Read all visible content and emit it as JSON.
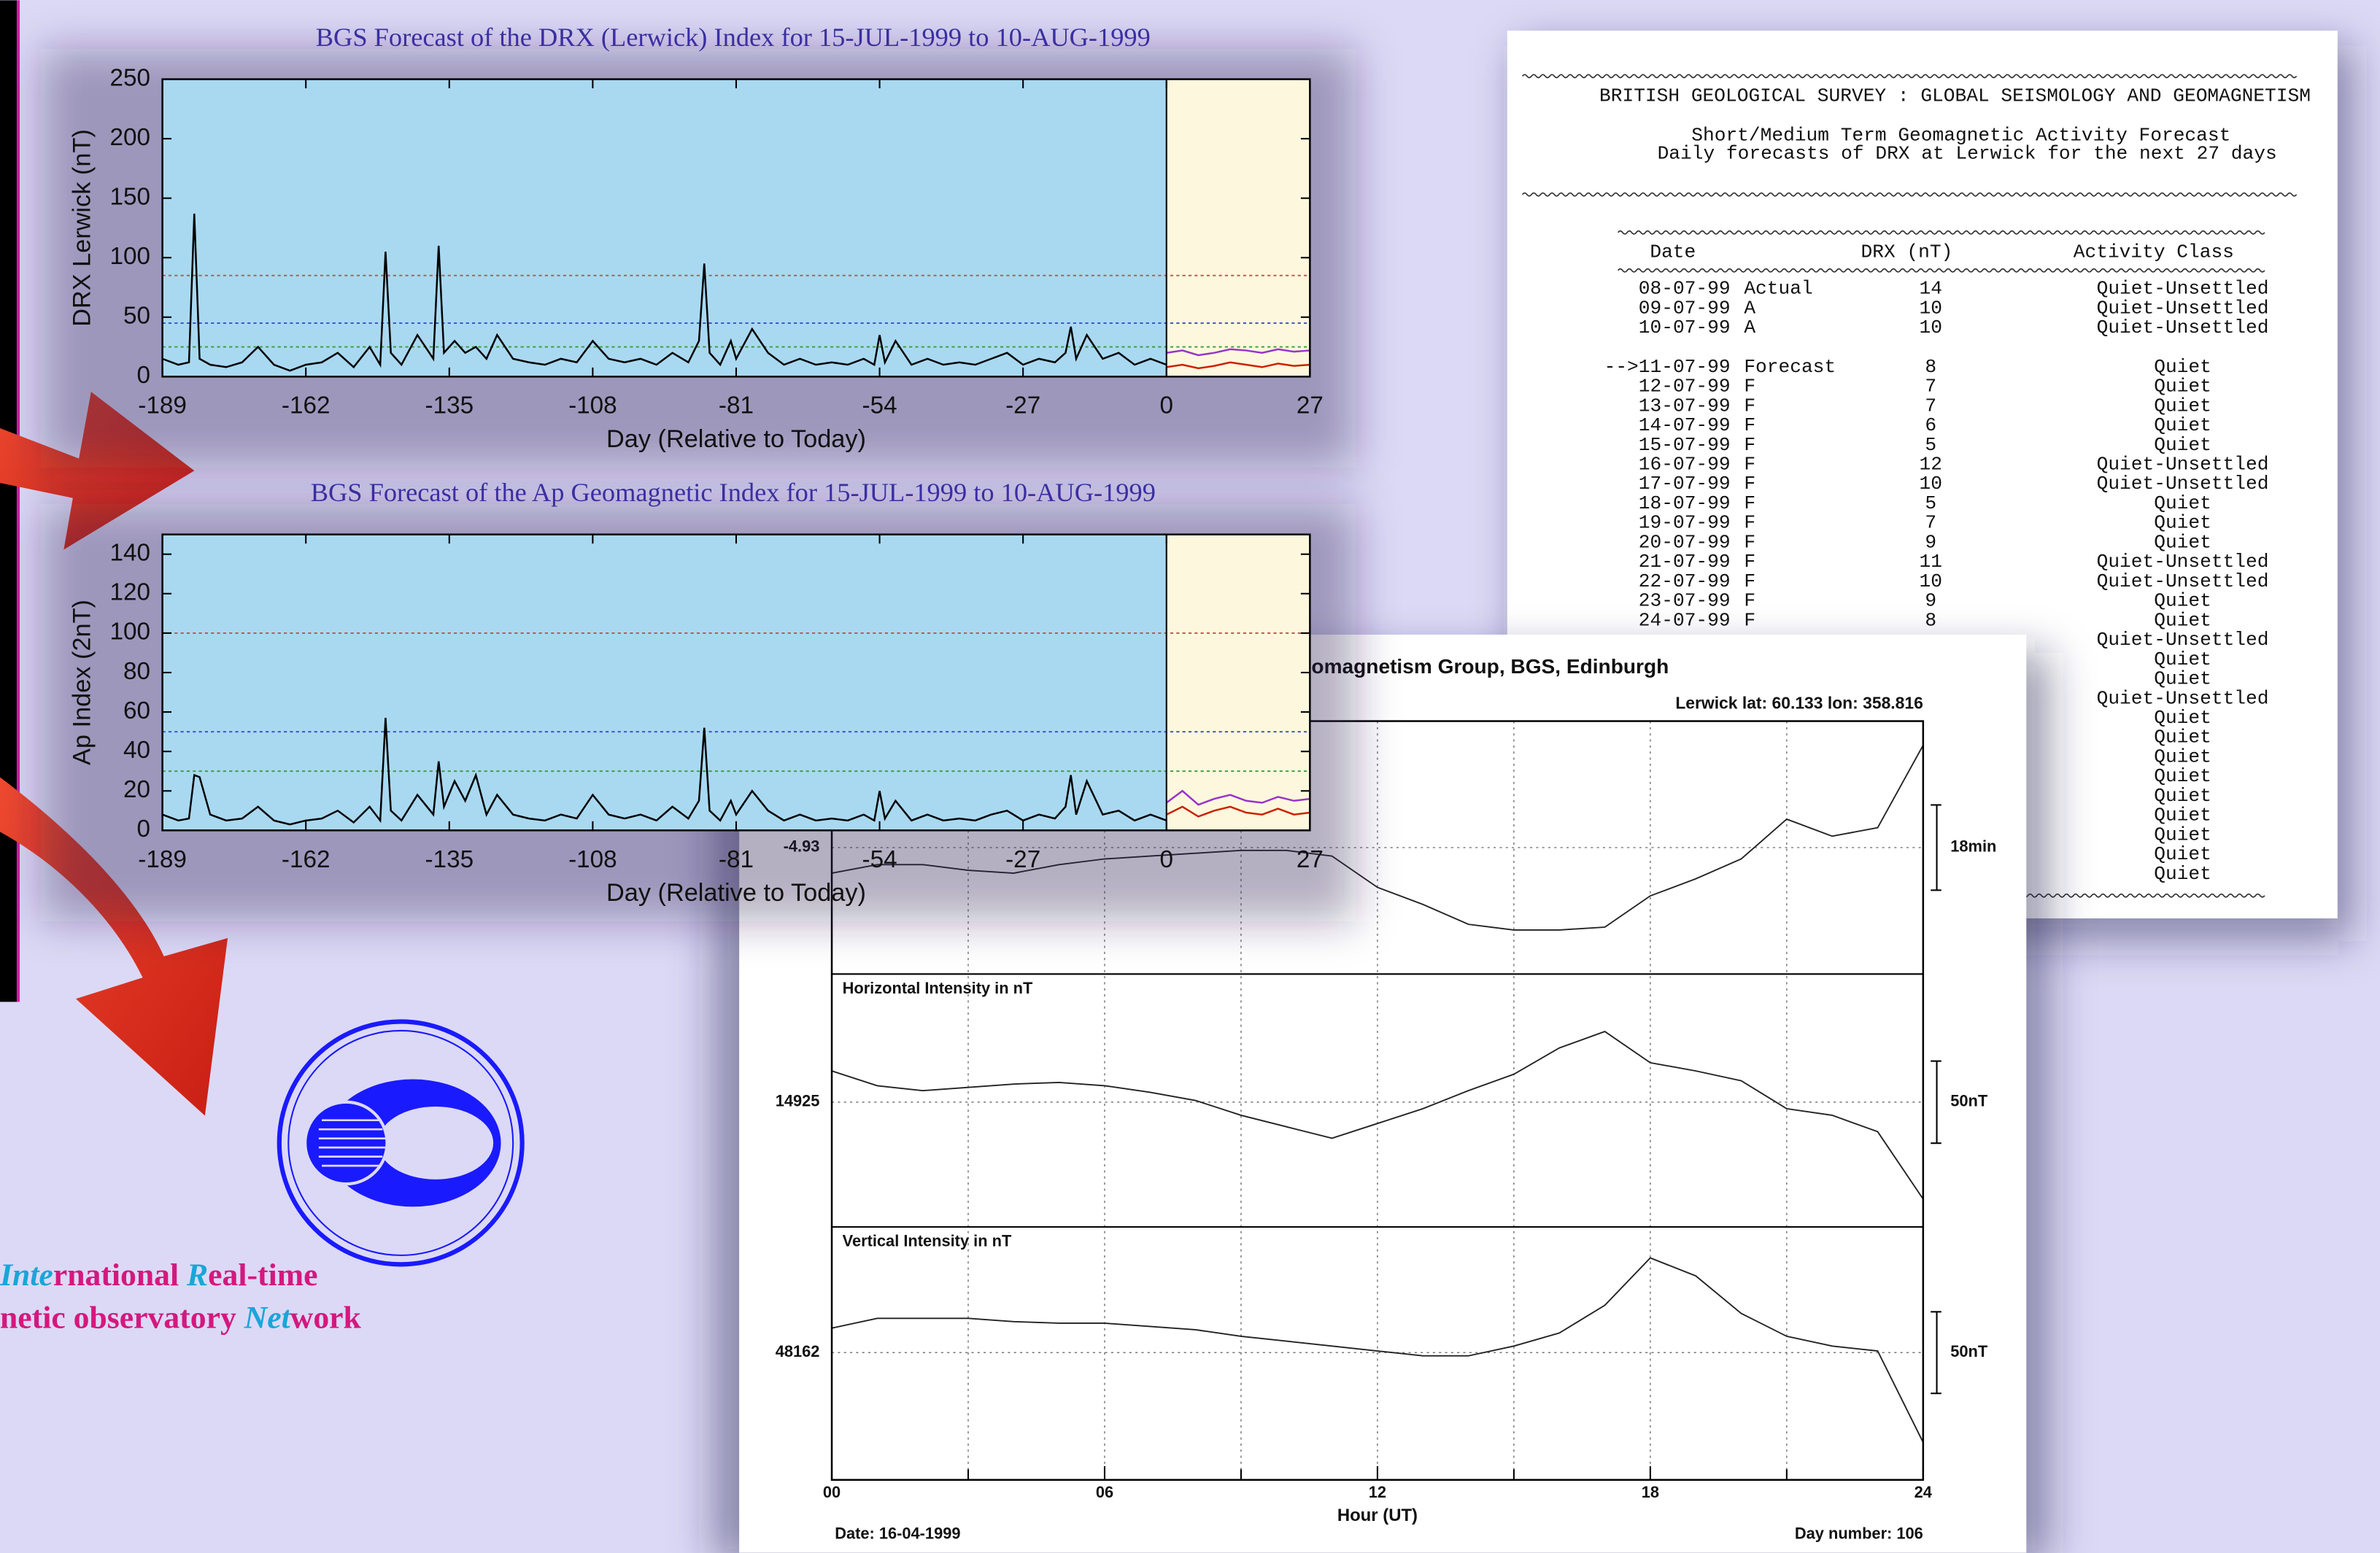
{
  "chart_data": [
    {
      "type": "line",
      "title": "BGS Forecast of the DRX (Lerwick) Index for  15-JUL-1999 to 10-AUG-1999",
      "x_label": "Day (Relative to Today)",
      "y_label": "DRX Lerwick (nT)",
      "xlim": [
        -189,
        27
      ],
      "xticks": [
        -189,
        -162,
        -135,
        -108,
        -81,
        -54,
        -27,
        0,
        27
      ],
      "ylim": [
        0,
        250
      ],
      "yticks": [
        0,
        50,
        100,
        150,
        200,
        250
      ],
      "forecast_region": [
        0,
        27
      ],
      "reference_lines": [
        {
          "value": 85,
          "color": "#c0504d"
        },
        {
          "value": 45,
          "color": "#3b4cc0"
        },
        {
          "value": 25,
          "color": "#3a9a3a"
        }
      ],
      "series": [
        {
          "color": "#000000",
          "x": [
            -189,
            -186,
            -184,
            -183,
            -182,
            -180,
            -177,
            -174,
            -171,
            -168,
            -165,
            -162,
            -159,
            -156,
            -153,
            -150,
            -148,
            -147,
            -146,
            -144,
            -141,
            -138,
            -137,
            -136,
            -134,
            -132,
            -130,
            -128,
            -126,
            -123,
            -120,
            -117,
            -114,
            -111,
            -108,
            -105,
            -102,
            -99,
            -96,
            -93,
            -90,
            -88,
            -87,
            -86,
            -84,
            -82,
            -81,
            -78,
            -75,
            -72,
            -69,
            -66,
            -63,
            -60,
            -57,
            -55,
            -54,
            -53,
            -51,
            -48,
            -45,
            -42,
            -39,
            -36,
            -33,
            -30,
            -27,
            -24,
            -21,
            -19,
            -18,
            -17,
            -15,
            -12,
            -9,
            -6,
            -3,
            0
          ],
          "values": [
            15,
            10,
            12,
            137,
            15,
            10,
            8,
            12,
            25,
            10,
            5,
            10,
            12,
            20,
            8,
            25,
            10,
            105,
            20,
            10,
            35,
            15,
            110,
            20,
            30,
            20,
            25,
            15,
            35,
            15,
            12,
            10,
            15,
            12,
            30,
            15,
            12,
            15,
            10,
            20,
            12,
            30,
            95,
            20,
            10,
            30,
            15,
            40,
            20,
            10,
            15,
            10,
            12,
            10,
            15,
            10,
            35,
            12,
            30,
            10,
            15,
            10,
            12,
            10,
            15,
            20,
            10,
            15,
            12,
            20,
            42,
            15,
            35,
            15,
            20,
            10,
            15,
            10
          ]
        },
        {
          "color": "#cc2200",
          "x": [
            0,
            3,
            6,
            9,
            12,
            15,
            18,
            21,
            24,
            27
          ],
          "values": [
            8,
            10,
            7,
            9,
            12,
            10,
            8,
            11,
            9,
            10
          ]
        },
        {
          "color": "#9933cc",
          "x": [
            0,
            3,
            6,
            9,
            12,
            15,
            18,
            21,
            24,
            27
          ],
          "values": [
            20,
            22,
            18,
            20,
            23,
            22,
            20,
            23,
            21,
            22
          ]
        }
      ]
    },
    {
      "type": "line",
      "title": "BGS Forecast of the Ap Geomagnetic Index for  15-JUL-1999 to 10-AUG-1999",
      "x_label": "Day (Relative to Today)",
      "y_label": "Ap Index (2nT)",
      "xlim": [
        -189,
        27
      ],
      "xticks": [
        -189,
        -162,
        -135,
        -108,
        -81,
        -54,
        -27,
        0,
        27
      ],
      "ylim": [
        0,
        150
      ],
      "yticks": [
        0,
        20,
        40,
        60,
        80,
        100,
        120,
        140
      ],
      "forecast_region": [
        0,
        27
      ],
      "reference_lines": [
        {
          "value": 100,
          "color": "#c0504d"
        },
        {
          "value": 50,
          "color": "#3b4cc0"
        },
        {
          "value": 30,
          "color": "#3a9a3a"
        }
      ],
      "series": [
        {
          "color": "#000000",
          "x": [
            -189,
            -186,
            -184,
            -183,
            -182,
            -180,
            -177,
            -174,
            -171,
            -168,
            -165,
            -162,
            -159,
            -156,
            -153,
            -150,
            -148,
            -147,
            -146,
            -144,
            -141,
            -138,
            -137,
            -136,
            -134,
            -132,
            -130,
            -128,
            -126,
            -123,
            -120,
            -117,
            -114,
            -111,
            -108,
            -105,
            -102,
            -99,
            -96,
            -93,
            -90,
            -88,
            -87,
            -86,
            -84,
            -82,
            -81,
            -78,
            -75,
            -72,
            -69,
            -66,
            -63,
            -60,
            -57,
            -55,
            -54,
            -53,
            -51,
            -48,
            -45,
            -42,
            -39,
            -36,
            -33,
            -30,
            -27,
            -24,
            -21,
            -19,
            -18,
            -17,
            -15,
            -12,
            -9,
            -6,
            -3,
            0
          ],
          "values": [
            8,
            5,
            6,
            28,
            27,
            8,
            5,
            6,
            12,
            5,
            3,
            5,
            6,
            10,
            4,
            12,
            5,
            57,
            10,
            5,
            18,
            8,
            35,
            12,
            25,
            15,
            28,
            8,
            18,
            8,
            6,
            5,
            8,
            6,
            18,
            8,
            6,
            8,
            5,
            12,
            6,
            15,
            52,
            10,
            5,
            15,
            8,
            20,
            10,
            5,
            8,
            5,
            6,
            5,
            8,
            5,
            20,
            6,
            15,
            5,
            8,
            5,
            6,
            5,
            8,
            10,
            5,
            8,
            6,
            12,
            28,
            8,
            25,
            8,
            10,
            5,
            8,
            5
          ]
        },
        {
          "color": "#cc2200",
          "x": [
            0,
            3,
            6,
            9,
            12,
            15,
            18,
            21,
            24,
            27
          ],
          "values": [
            8,
            12,
            7,
            10,
            12,
            9,
            8,
            11,
            8,
            9
          ]
        },
        {
          "color": "#9933cc",
          "x": [
            0,
            3,
            6,
            9,
            12,
            15,
            18,
            21,
            24,
            27
          ],
          "values": [
            14,
            20,
            13,
            16,
            18,
            15,
            14,
            17,
            15,
            16
          ]
        }
      ]
    },
    {
      "type": "magnetogram",
      "title": "Geomagnetism Group, BGS, Edinburgh",
      "station": "Lerwick  lat: 60.133  lon: 358.816",
      "x_label": "Hour (UT)",
      "date": "Date: 16-04-1999",
      "day_number": "Day number:  106",
      "xlim": [
        0,
        24
      ],
      "xticks": [
        {
          "value": 0,
          "label": "00"
        },
        {
          "value": 6,
          "label": "06"
        },
        12,
        18,
        24
      ],
      "minor_xticks": [
        3,
        9,
        15,
        21
      ],
      "x": [
        0,
        1,
        2,
        3,
        4,
        5,
        6,
        7,
        8,
        9,
        10,
        11,
        12,
        13,
        14,
        15,
        16,
        17,
        18,
        19,
        20,
        21,
        22,
        23,
        24
      ],
      "panels": [
        {
          "ylim": [
            -5.375,
            -4.485
          ],
          "yticks": [
            -4.93
          ],
          "scale_bar": {
            "label": "18min",
            "size": 0.3
          },
          "values": [
            -5.02,
            -4.99,
            -4.99,
            -5.01,
            -5.02,
            -4.99,
            -4.97,
            -4.96,
            -4.95,
            -4.94,
            -4.94,
            -4.96,
            -5.07,
            -5.13,
            -5.2,
            -5.22,
            -5.22,
            -5.21,
            -5.1,
            -5.04,
            -4.97,
            -4.83,
            -4.89,
            -4.86,
            -4.57
          ]
        },
        {
          "label": "Horizontal Intensity in nT",
          "ylim": [
            14849,
            15003
          ],
          "yticks": [
            14925
          ],
          "scale_bar": {
            "label": "50nT",
            "size": 50
          },
          "values": [
            14944,
            14935,
            14932,
            14934,
            14936,
            14937,
            14935,
            14931,
            14926,
            14917,
            14910,
            14903,
            14912,
            14921,
            14932,
            14942,
            14958,
            14968,
            14949,
            14944,
            14938,
            14921,
            14917,
            14907,
            14866
          ]
        },
        {
          "label": "Vertical Intensity in nT",
          "ylim": [
            48084,
            48239
          ],
          "yticks": [
            48162
          ],
          "scale_bar": {
            "label": "50nT",
            "size": 50
          },
          "values": [
            48177,
            48183,
            48183,
            48183,
            48181,
            48180,
            48180,
            48178,
            48176,
            48172,
            48169,
            48166,
            48163,
            48160,
            48160,
            48166,
            48174,
            48191,
            48220,
            48209,
            48186,
            48172,
            48166,
            48163,
            48107
          ]
        }
      ]
    }
  ],
  "forecast_document": {
    "title_lines": [
      "BRITISH GEOLOGICAL SURVEY : GLOBAL SEISMOLOGY AND GEOMAGNETISM",
      "Short/Medium Term Geomagnetic Activity Forecast",
      "Daily forecasts of DRX at Lerwick for the next 27 days"
    ],
    "columns": [
      "Date",
      "DRX (nT)",
      "Activity Class"
    ],
    "rows": [
      [
        "08-07-99",
        "Actual",
        14,
        "Quiet-Unsettled"
      ],
      [
        "09-07-99",
        "A",
        10,
        "Quiet-Unsettled"
      ],
      [
        "10-07-99",
        "A",
        10,
        "Quiet-Unsettled"
      ],
      [
        "-->11-07-99",
        "Forecast",
        8,
        "Quiet"
      ],
      [
        "12-07-99",
        "F",
        7,
        "Quiet"
      ],
      [
        "13-07-99",
        "F",
        7,
        "Quiet"
      ],
      [
        "14-07-99",
        "F",
        6,
        "Quiet"
      ],
      [
        "15-07-99",
        "F",
        5,
        "Quiet"
      ],
      [
        "16-07-99",
        "F",
        12,
        "Quiet-Unsettled"
      ],
      [
        "17-07-99",
        "F",
        10,
        "Quiet-Unsettled"
      ],
      [
        "18-07-99",
        "F",
        5,
        "Quiet"
      ],
      [
        "19-07-99",
        "F",
        7,
        "Quiet"
      ],
      [
        "20-07-99",
        "F",
        9,
        "Quiet"
      ],
      [
        "21-07-99",
        "F",
        11,
        "Quiet-Unsettled"
      ],
      [
        "22-07-99",
        "F",
        10,
        "Quiet-Unsettled"
      ],
      [
        "23-07-99",
        "F",
        9,
        "Quiet"
      ],
      [
        "24-07-99",
        "F",
        8,
        "Quiet"
      ]
    ],
    "obscured_row_classes": [
      "Quiet-Unsettled",
      "Quiet",
      "Quiet",
      "Quiet-Unsettled",
      "Quiet",
      "Quiet",
      "Quiet",
      "Quiet",
      "Quiet",
      "Quiet",
      "Quiet",
      "Quiet",
      "Quiet"
    ]
  },
  "logo_text": [
    [
      {
        "text": "Inte",
        "emphasis": true
      },
      {
        "text": "rnational ",
        "emphasis": false
      },
      {
        "text": "R",
        "emphasis": true
      },
      {
        "text": "eal-time",
        "emphasis": false
      }
    ],
    [
      {
        "text": "netic observatory ",
        "emphasis": false
      },
      {
        "text": "Net",
        "emphasis": true
      },
      {
        "text": "work",
        "emphasis": false
      }
    ]
  ]
}
